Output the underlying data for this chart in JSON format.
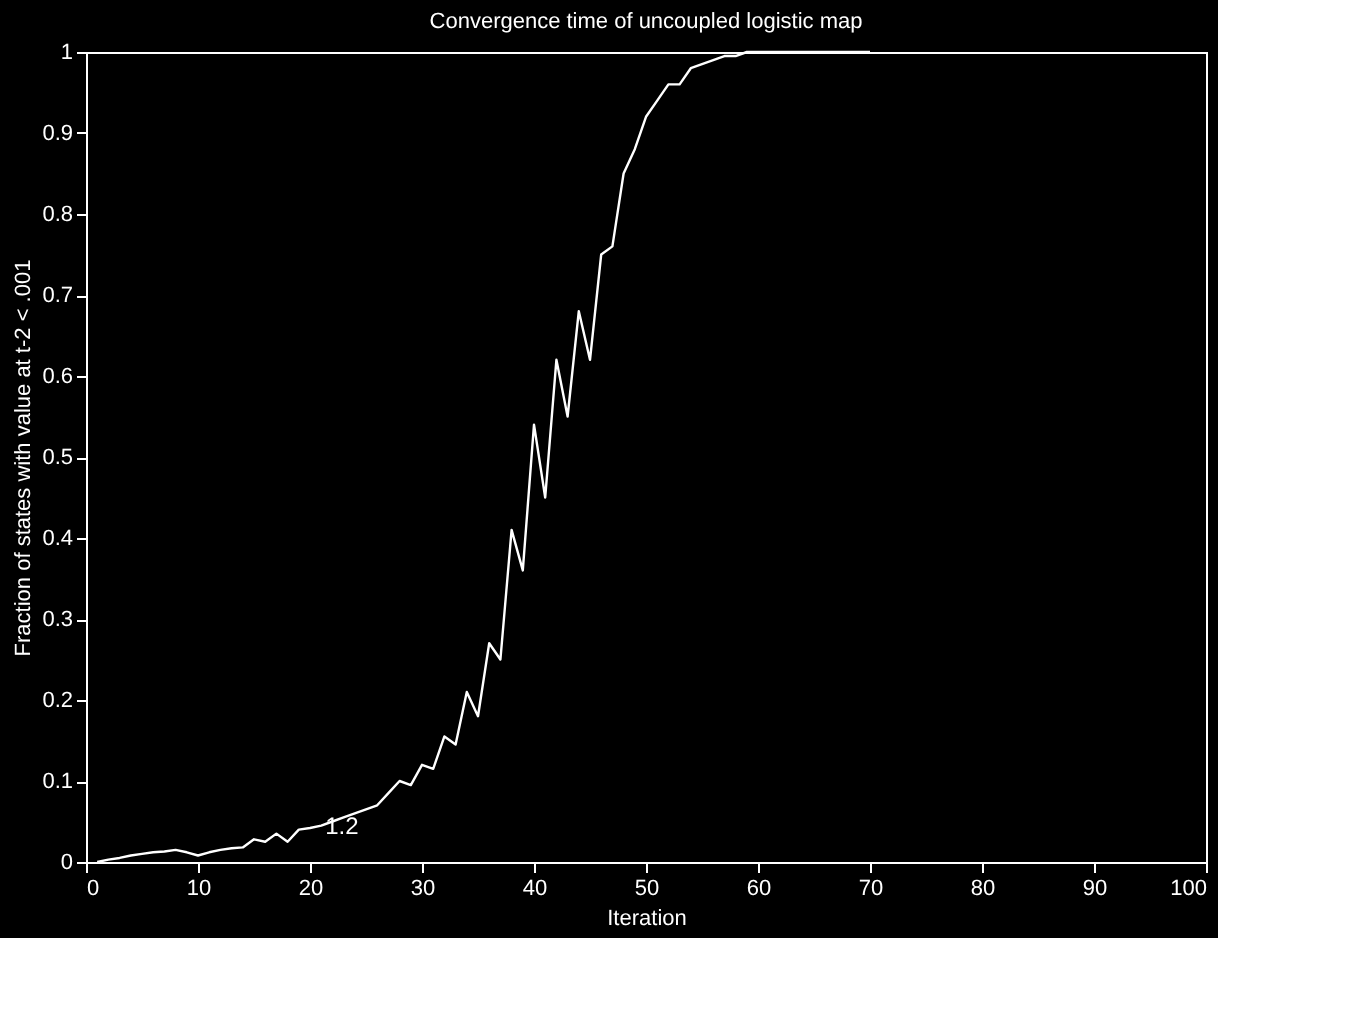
{
  "chart_data": {
    "type": "line",
    "title": "Convergence time of uncoupled logistic map",
    "xlabel": "Iteration",
    "ylabel": "Fraction of states with value at t-2 < .001",
    "x": [
      1,
      2,
      3,
      4,
      5,
      6,
      7,
      8,
      9,
      10,
      11,
      12,
      13,
      14,
      15,
      16,
      17,
      18,
      19,
      20,
      21,
      22,
      23,
      24,
      25,
      26,
      27,
      28,
      29,
      30,
      31,
      32,
      33,
      34,
      35,
      36,
      37,
      38,
      39,
      40,
      41,
      42,
      43,
      44,
      45,
      46,
      47,
      48,
      49,
      50,
      51,
      52,
      53,
      54,
      55,
      56,
      57,
      58,
      59,
      60,
      61,
      62,
      63,
      64,
      65,
      66,
      67,
      68,
      69,
      70
    ],
    "series": [
      {
        "color": "#ffffff",
        "values": [
          0,
          0.003,
          0.005,
          0.008,
          0.01,
          0.012,
          0.013,
          0.015,
          0.012,
          0.008,
          0.012,
          0.015,
          0.017,
          0.018,
          0.028,
          0.025,
          0.035,
          0.025,
          0.04,
          0.042,
          0.045,
          0.05,
          0.055,
          0.06,
          0.065,
          0.07,
          0.085,
          0.1,
          0.095,
          0.12,
          0.115,
          0.155,
          0.145,
          0.21,
          0.18,
          0.27,
          0.25,
          0.41,
          0.36,
          0.54,
          0.45,
          0.62,
          0.55,
          0.68,
          0.62,
          0.75,
          0.76,
          0.85,
          0.88,
          0.92,
          0.94,
          0.96,
          0.96,
          0.98,
          0.985,
          0.99,
          0.995,
          0.995,
          1,
          1,
          1,
          1,
          1,
          1,
          1,
          1,
          1,
          1,
          1,
          1
        ]
      }
    ],
    "annotations": [
      {
        "text": "1.2",
        "x": 21,
        "y": 0.045
      }
    ],
    "xlim": [
      0,
      100
    ],
    "xticks": [
      0,
      10,
      20,
      30,
      40,
      50,
      60,
      70,
      80,
      90,
      100
    ],
    "ylim": [
      0,
      1
    ],
    "yticks": [
      0,
      0.1,
      0.2,
      0.3,
      0.4,
      0.5,
      0.6,
      0.7,
      0.8,
      0.9,
      1
    ],
    "grid": false,
    "legend": false,
    "marker": "none",
    "line_style": "solid"
  }
}
